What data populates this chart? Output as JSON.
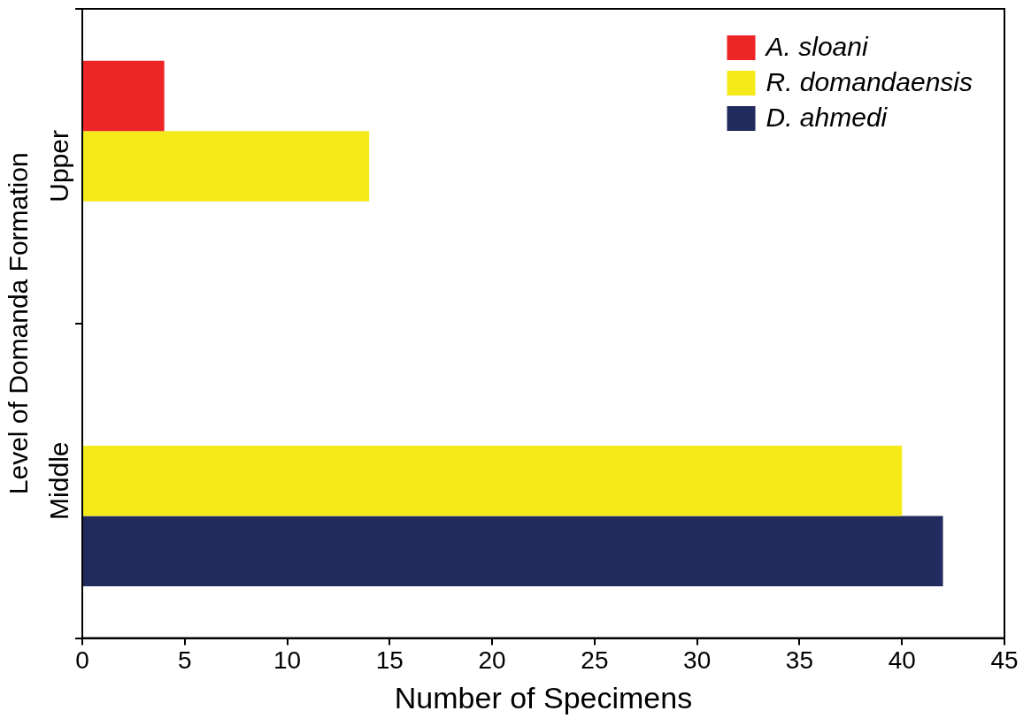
{
  "chart_data": {
    "type": "bar",
    "orientation": "horizontal",
    "xlabel": "Number of Specimens",
    "ylabel": "Level of Domanda Formation",
    "categories": [
      "Upper",
      "Middle"
    ],
    "series": [
      {
        "name": "A. sloani",
        "color": "#ee2527",
        "values": [
          4,
          null
        ]
      },
      {
        "name": "R. domandaensis",
        "color": "#f4ea1a",
        "values": [
          14,
          40
        ]
      },
      {
        "name": "D. ahmedi",
        "color": "#222b5e",
        "values": [
          null,
          42
        ]
      }
    ],
    "xlim": [
      0,
      45
    ],
    "xticks": [
      0,
      5,
      10,
      15,
      20,
      25,
      30,
      35,
      40,
      45
    ],
    "grid": false,
    "legend": "top right"
  }
}
